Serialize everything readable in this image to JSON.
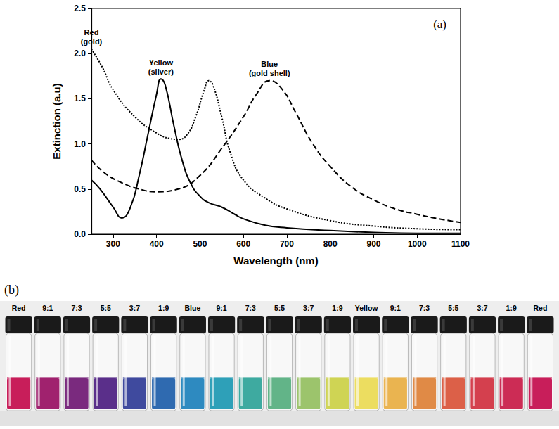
{
  "chart_data": {
    "type": "line",
    "annotation": "(a)",
    "x_label": "Wavelength (nm)",
    "y_label": "Extinction (a.u)",
    "xlim": [
      250,
      1100
    ],
    "xticks": [
      300,
      400,
      500,
      600,
      700,
      800,
      900,
      1000,
      1100
    ],
    "ylim": [
      0,
      2.5
    ],
    "yticks": [
      {
        "value": 0,
        "label": "0.0"
      },
      0.5,
      {
        "value": 1,
        "label": "1.0"
      },
      1.5,
      {
        "value": 2,
        "label": "2.0"
      },
      2.5
    ],
    "grid": false,
    "series": [
      {
        "name": "Yellow (silver)",
        "color": "#000000",
        "line_style": "solid",
        "x": [
          250,
          270,
          300,
          320,
          340,
          360,
          380,
          400,
          410,
          420,
          440,
          460,
          480,
          500,
          520,
          550,
          580,
          600,
          650,
          700,
          800,
          900,
          1000,
          1100
        ],
        "values": [
          0.6,
          0.5,
          0.3,
          0.18,
          0.3,
          0.65,
          1.1,
          1.55,
          1.72,
          1.65,
          1.2,
          0.8,
          0.55,
          0.42,
          0.35,
          0.3,
          0.22,
          0.17,
          0.1,
          0.07,
          0.04,
          0.02,
          0.01,
          0.01
        ]
      },
      {
        "name": "Red (gold)",
        "color": "#000000",
        "line_style": "dotted",
        "x": [
          250,
          275,
          300,
          350,
          400,
          430,
          450,
          470,
          490,
          510,
          520,
          530,
          550,
          570,
          600,
          650,
          700,
          800,
          900,
          1000,
          1100
        ],
        "values": [
          2.05,
          1.85,
          1.6,
          1.3,
          1.12,
          1.06,
          1.05,
          1.1,
          1.3,
          1.6,
          1.7,
          1.65,
          1.3,
          0.9,
          0.6,
          0.4,
          0.28,
          0.15,
          0.09,
          0.06,
          0.05
        ]
      },
      {
        "name": "Blue (gold shell)",
        "color": "#000000",
        "line_style": "dashed",
        "x": [
          250,
          280,
          320,
          360,
          400,
          450,
          500,
          550,
          600,
          630,
          660,
          690,
          720,
          760,
          800,
          850,
          900,
          950,
          1000,
          1050,
          1100
        ],
        "values": [
          0.82,
          0.68,
          0.57,
          0.5,
          0.47,
          0.5,
          0.65,
          0.95,
          1.3,
          1.55,
          1.7,
          1.6,
          1.35,
          1.0,
          0.75,
          0.52,
          0.38,
          0.28,
          0.22,
          0.17,
          0.13
        ]
      }
    ]
  },
  "photo": {
    "annotation": "(b)",
    "vials": [
      {
        "label": "Red",
        "color": "#c81e5a"
      },
      {
        "label": "9:1",
        "color": "#a0226e"
      },
      {
        "label": "7:3",
        "color": "#7a2a7e"
      },
      {
        "label": "5:5",
        "color": "#5a2f8a"
      },
      {
        "label": "3:7",
        "color": "#3f4a9e"
      },
      {
        "label": "1:9",
        "color": "#2f6ab0"
      },
      {
        "label": "Blue",
        "color": "#2e8ac0"
      },
      {
        "label": "9:1",
        "color": "#2ea0b8"
      },
      {
        "label": "7:3",
        "color": "#3eaaa0"
      },
      {
        "label": "5:5",
        "color": "#62b488"
      },
      {
        "label": "3:7",
        "color": "#9cc46c"
      },
      {
        "label": "1:9",
        "color": "#cfd454"
      },
      {
        "label": "Yellow",
        "color": "#ecdd60"
      },
      {
        "label": "9:1",
        "color": "#eab450"
      },
      {
        "label": "7:3",
        "color": "#e08a46"
      },
      {
        "label": "5:5",
        "color": "#dc6048"
      },
      {
        "label": "3:7",
        "color": "#d4404e"
      },
      {
        "label": "1:9",
        "color": "#cc2c55"
      },
      {
        "label": "Red",
        "color": "#c81e5a"
      }
    ]
  }
}
